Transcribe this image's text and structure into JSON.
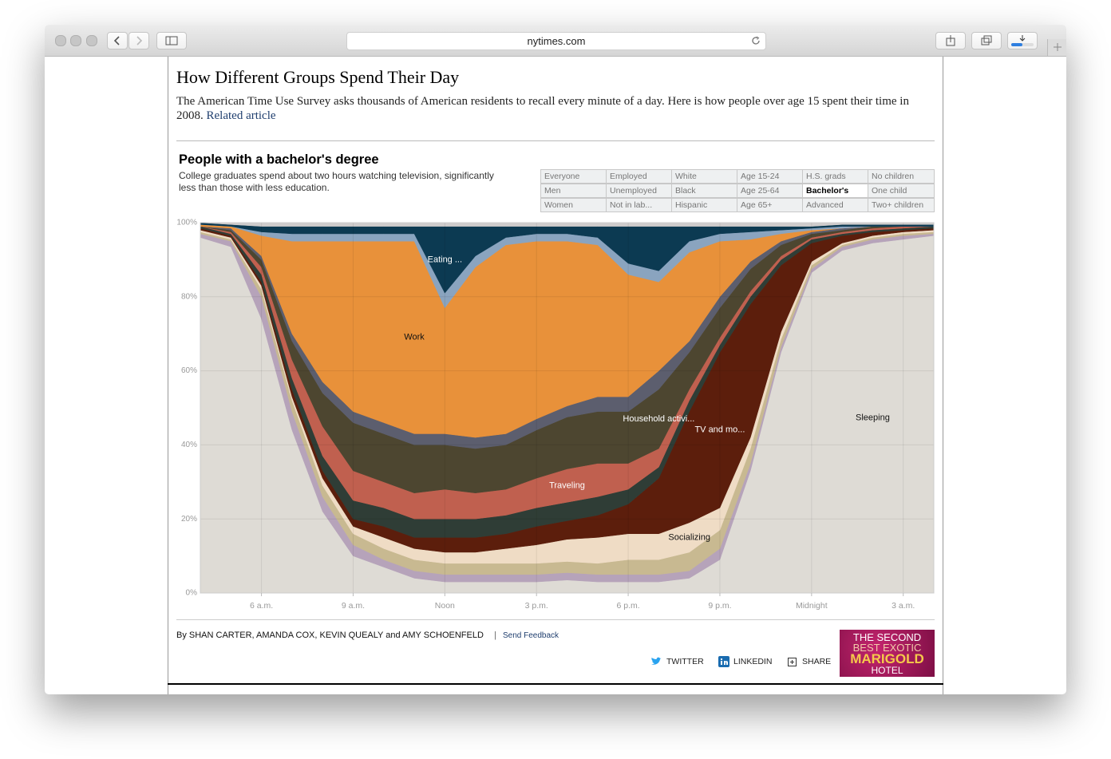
{
  "browser": {
    "url": "nytimes.com"
  },
  "article": {
    "title": "How Different Groups Spend Their Day",
    "description": "The American Time Use Survey asks thousands of American residents to recall every minute of a day. Here is how people over age 15 spent their time in 2008.",
    "link": "Related article"
  },
  "panel": {
    "heading": "People with a bachelor's degree",
    "note": "College graduates spend about two hours watching television, significantly less than those with less education.",
    "filters": [
      [
        "Everyone",
        "Men",
        "Women"
      ],
      [
        "Employed",
        "Unemployed",
        "Not in lab..."
      ],
      [
        "White",
        "Black",
        "Hispanic"
      ],
      [
        "Age 15-24",
        "Age 25-64",
        "Age 65+"
      ],
      [
        "H.S. grads",
        "Bachelor's",
        "Advanced"
      ],
      [
        "No children",
        "One child",
        "Two+ children"
      ]
    ],
    "selected": "Bachelor's"
  },
  "chart_data": {
    "type": "stacked_area",
    "x": [
      4,
      5,
      6,
      7,
      8,
      9,
      10,
      11,
      12,
      13,
      14,
      15,
      16,
      17,
      18,
      19,
      20,
      21,
      22,
      23,
      24,
      25,
      26,
      27,
      28
    ],
    "xlim": [
      4,
      28
    ],
    "xticks": [
      {
        "value": 6,
        "label": "6 a.m."
      },
      {
        "value": 9,
        "label": "9 a.m."
      },
      {
        "value": 12,
        "label": "Noon"
      },
      {
        "value": 15,
        "label": "3 p.m."
      },
      {
        "value": 18,
        "label": "6 p.m."
      },
      {
        "value": 21,
        "label": "9 p.m."
      },
      {
        "value": 24,
        "label": "Midnight"
      },
      {
        "value": 27,
        "label": "3 a.m."
      }
    ],
    "ylim": [
      0,
      100
    ],
    "yticks": [
      {
        "value": 0,
        "label": "0%"
      },
      {
        "value": 20,
        "label": "20%"
      },
      {
        "value": 40,
        "label": "40%"
      },
      {
        "value": 60,
        "label": "60%"
      },
      {
        "value": 80,
        "label": "80%"
      },
      {
        "value": 100,
        "label": "100%"
      }
    ],
    "grid": true,
    "series": [
      {
        "name": "Sleeping",
        "color": "#dedbd5",
        "values": [
          96,
          93.5,
          74,
          44,
          22,
          10,
          7,
          4,
          3,
          3,
          3,
          3,
          3.5,
          3,
          3,
          3,
          4,
          9,
          33,
          65,
          86.5,
          92.5,
          94.5,
          95.5,
          96.5
        ]
      },
      {
        "color": "#b6a3ba",
        "values": [
          1,
          1.5,
          6,
          5,
          4,
          3,
          2,
          2,
          2,
          2,
          2,
          2,
          2,
          2,
          2,
          2,
          2,
          3,
          2,
          1.5,
          1,
          1,
          1,
          1,
          0.5
        ]
      },
      {
        "color": "#c8b991",
        "values": [
          0.5,
          0.5,
          2,
          3,
          3,
          3,
          3,
          3,
          3,
          3,
          3,
          3,
          3,
          3,
          4,
          4,
          5,
          5,
          4,
          2,
          1,
          0.5,
          0.5,
          0.5,
          0.5
        ]
      },
      {
        "name": "Socializing",
        "color": "#efdcc5",
        "values": [
          0.5,
          0.5,
          1,
          1,
          2,
          2,
          3,
          3,
          3,
          3,
          4,
          5,
          6,
          7,
          7,
          7,
          8,
          6,
          3,
          2,
          1,
          0.5,
          0.5,
          0.5,
          0.5
        ]
      },
      {
        "name": "TV and mo...",
        "color": "#5c1e0c",
        "values": [
          0.5,
          0.5,
          1,
          2,
          2,
          2,
          3,
          3,
          4,
          4,
          4,
          5,
          5,
          6,
          8,
          15,
          30,
          42,
          36,
          18,
          5,
          2,
          1,
          0.5,
          0.5
        ]
      },
      {
        "color": "#2f3d36",
        "values": [
          0.5,
          0.5,
          2,
          3,
          4,
          5,
          5,
          5,
          5,
          5,
          5,
          5,
          5,
          5,
          4,
          3,
          3,
          2,
          2,
          1.5,
          1,
          0.5,
          0.5,
          0.5,
          0.5
        ]
      },
      {
        "name": "Traveling",
        "color": "#c0604f",
        "values": [
          0,
          0.5,
          2,
          5,
          8,
          8,
          7,
          7,
          8,
          7,
          7,
          8,
          9,
          9,
          7,
          5,
          3,
          2,
          1.5,
          1,
          0.5,
          0.5,
          0.5,
          0.5,
          0
        ]
      },
      {
        "name": "Household activi...",
        "color": "#4d4630",
        "values": [
          0,
          0.5,
          2,
          5,
          9,
          13,
          13,
          13,
          12,
          12,
          12,
          13,
          14,
          14,
          14,
          16,
          10,
          8,
          6,
          3,
          1,
          0.5,
          0.5,
          0,
          0
        ]
      },
      {
        "color": "#5c5e6e",
        "values": [
          0,
          0.5,
          1,
          2,
          3,
          3,
          3,
          3,
          3,
          3,
          3,
          3,
          3,
          4,
          4,
          5,
          3,
          3,
          2,
          1,
          0.5,
          0.5,
          0,
          0,
          0
        ]
      },
      {
        "name": "Work",
        "color": "#e8913a",
        "values": [
          0.5,
          0.5,
          5.5,
          25,
          38,
          46,
          49,
          52,
          34,
          46,
          51,
          48,
          44.5,
          41,
          33,
          24,
          24,
          15,
          6,
          2,
          0.5,
          0,
          0,
          0,
          0
        ]
      },
      {
        "color": "#8aa4bf",
        "values": [
          0,
          0,
          1,
          2,
          2,
          2,
          2,
          2,
          4,
          3,
          2,
          2,
          2,
          2,
          3,
          3,
          3,
          2,
          2,
          1,
          0.5,
          0.5,
          0,
          0,
          0
        ]
      },
      {
        "name": "Eating ...",
        "color": "#0c3a52",
        "values": [
          0.5,
          0.5,
          1.5,
          2,
          2,
          2,
          2,
          2,
          18,
          8,
          3,
          2,
          2,
          3,
          10,
          12,
          4,
          2,
          1.5,
          1,
          0.5,
          0.5,
          0.5,
          0.5,
          0.5
        ]
      },
      {
        "color": "#cfcccc",
        "values": [
          0,
          0.5,
          1,
          1,
          1,
          1,
          1,
          1,
          1,
          1,
          1,
          1,
          1,
          1,
          1,
          1,
          1,
          1,
          1,
          1,
          1,
          0.5,
          0.5,
          0.5,
          0.5
        ]
      }
    ]
  },
  "footer": {
    "byline": "By SHAN CARTER, AMANDA COX, KEVIN QUEALY and AMY SCHOENFELD",
    "separator": "|",
    "feedback": "Send Feedback",
    "share": [
      "TWITTER",
      "LINKEDIN",
      "SHARE"
    ],
    "ad": [
      "THE SECOND",
      "BEST EXOTIC",
      "MARIGOLD",
      "HOTEL"
    ]
  }
}
